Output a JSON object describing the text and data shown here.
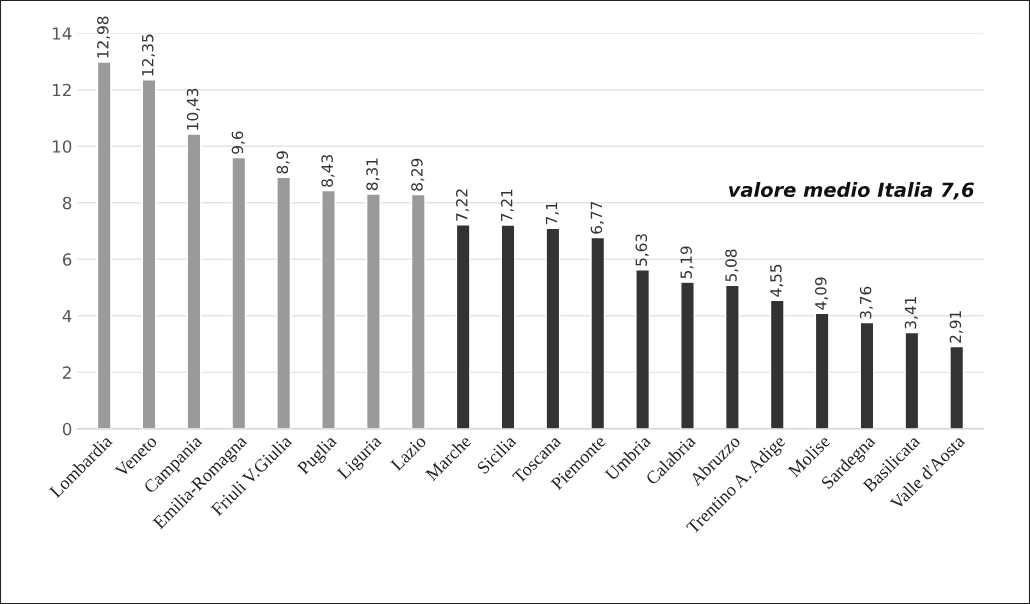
{
  "chart_data": {
    "type": "bar",
    "categories": [
      "Lombardia",
      "Veneto",
      "Campania",
      "Emilia-Romagna",
      "Friuli V.Giulia",
      "Puglia",
      "Liguria",
      "Lazio",
      "Marche",
      "Sicilia",
      "Toscana",
      "Piemonte",
      "Umbria",
      "Calabria",
      "Abruzzo",
      "Trentino A. Adige",
      "Molise",
      "Sardegna",
      "Basilicata",
      "Valle d'Aosta"
    ],
    "values": [
      12.98,
      12.35,
      10.43,
      9.6,
      8.9,
      8.43,
      8.31,
      8.29,
      7.22,
      7.21,
      7.1,
      6.77,
      5.63,
      5.19,
      5.08,
      4.55,
      4.09,
      3.76,
      3.41,
      2.91
    ],
    "value_labels": [
      "12,98",
      "12,35",
      "10,43",
      "9,6",
      "8,9",
      "8,43",
      "8,31",
      "8,29",
      "7,22",
      "7,21",
      "7,1",
      "6,77",
      "5,63",
      "5,19",
      "5,08",
      "4,55",
      "4,09",
      "3,76",
      "3,41",
      "2,91"
    ],
    "colors": [
      "#9a9a9a",
      "#9a9a9a",
      "#9a9a9a",
      "#9a9a9a",
      "#9a9a9a",
      "#9a9a9a",
      "#9a9a9a",
      "#9a9a9a",
      "#333333",
      "#333333",
      "#333333",
      "#333333",
      "#333333",
      "#333333",
      "#333333",
      "#333333",
      "#333333",
      "#333333",
      "#333333",
      "#333333"
    ],
    "annotations": [
      "valore medio Italia 7,6"
    ],
    "ylim": [
      0,
      14
    ],
    "yticks": [
      0,
      2,
      4,
      6,
      8,
      10,
      12,
      14
    ],
    "grid": "y",
    "legend": false
  }
}
